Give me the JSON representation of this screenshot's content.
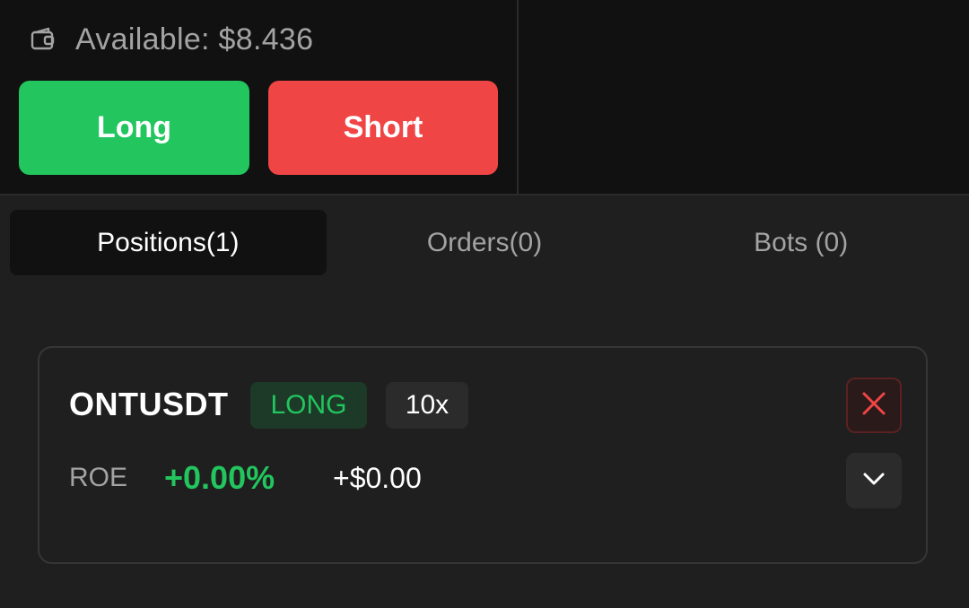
{
  "wallet": {
    "available_label": "Available: $8.436"
  },
  "actions": {
    "long_label": "Long",
    "short_label": "Short"
  },
  "tabs": [
    {
      "label": "Positions(1)",
      "active": true
    },
    {
      "label": "Orders(0)",
      "active": false
    },
    {
      "label": "Bots (0)",
      "active": false
    }
  ],
  "position": {
    "symbol": "ONTUSDT",
    "side": "LONG",
    "leverage": "10x",
    "roe_label": "ROE",
    "roe_value": "+0.00%",
    "pnl_value": "+$0.00"
  },
  "colors": {
    "long_green": "#22c55e",
    "short_red": "#f04545",
    "background": "#1f1f1f",
    "panel_dark": "#111111"
  },
  "icons": {
    "wallet": "wallet-icon",
    "close": "close-icon",
    "expand": "chevron-down-icon"
  }
}
